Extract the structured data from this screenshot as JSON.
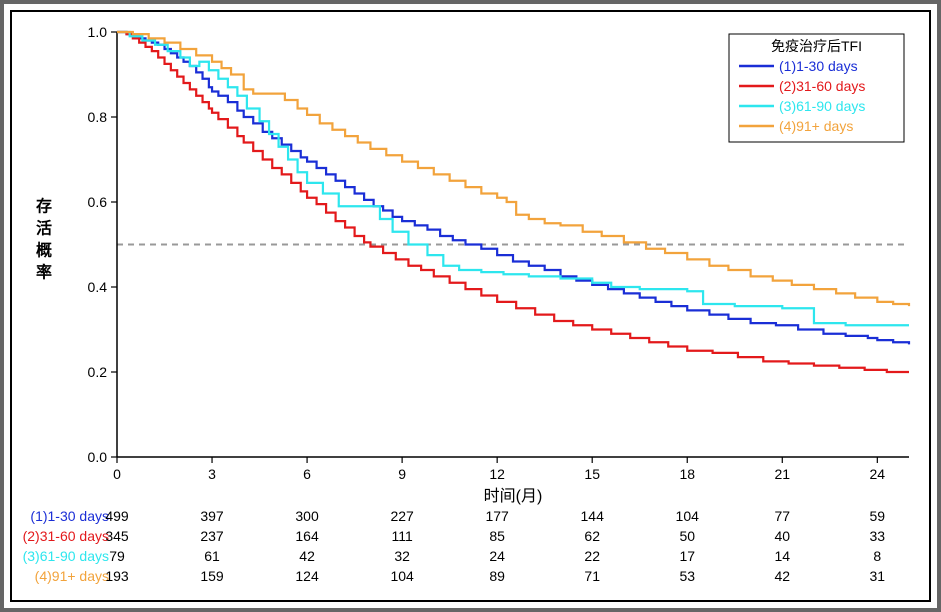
{
  "chart": {
    "type": "kaplan-meier",
    "background_color": "#ffffff",
    "xlabel": "时间(月)",
    "ylabel": "存活概率",
    "label_fontsize": 16,
    "xlim": [
      0,
      25
    ],
    "ylim": [
      0,
      1.0
    ],
    "xticks": [
      0,
      3,
      6,
      9,
      12,
      15,
      18,
      21,
      24
    ],
    "yticks": [
      0.0,
      0.2,
      0.4,
      0.6,
      0.8,
      1.0
    ],
    "yticklabels": [
      "0.0",
      "0.2",
      "0.4",
      "0.6",
      "0.8",
      "1.0"
    ],
    "tick_fontsize": 14,
    "axis_color": "#000000",
    "ref_line": {
      "y": 0.5,
      "color": "#999999",
      "dash": "6,5",
      "width": 2
    },
    "legend": {
      "title": "免疫治疗后TFI",
      "title_color": "#000000",
      "border_color": "#000000",
      "bg_color": "#ffffff",
      "fontsize": 14,
      "position": "top-right"
    },
    "line_width": 2.2,
    "series": [
      {
        "id": "s1",
        "label": "(1)1-30 days",
        "color": "#1a2ed6",
        "points": [
          [
            0,
            1.0
          ],
          [
            0.2,
            1.0
          ],
          [
            0.3,
            0.995
          ],
          [
            0.5,
            0.99
          ],
          [
            0.7,
            0.985
          ],
          [
            0.9,
            0.98
          ],
          [
            1.1,
            0.975
          ],
          [
            1.3,
            0.97
          ],
          [
            1.5,
            0.96
          ],
          [
            1.7,
            0.95
          ],
          [
            1.9,
            0.94
          ],
          [
            2.1,
            0.93
          ],
          [
            2.3,
            0.92
          ],
          [
            2.5,
            0.905
          ],
          [
            2.7,
            0.89
          ],
          [
            2.9,
            0.87
          ],
          [
            3.0,
            0.86
          ],
          [
            3.2,
            0.85
          ],
          [
            3.5,
            0.835
          ],
          [
            3.8,
            0.815
          ],
          [
            4.0,
            0.8
          ],
          [
            4.3,
            0.785
          ],
          [
            4.6,
            0.765
          ],
          [
            4.9,
            0.75
          ],
          [
            5.2,
            0.735
          ],
          [
            5.5,
            0.72
          ],
          [
            5.8,
            0.705
          ],
          [
            6.0,
            0.695
          ],
          [
            6.3,
            0.68
          ],
          [
            6.6,
            0.665
          ],
          [
            6.9,
            0.65
          ],
          [
            7.2,
            0.635
          ],
          [
            7.5,
            0.62
          ],
          [
            7.8,
            0.605
          ],
          [
            8.1,
            0.59
          ],
          [
            8.4,
            0.58
          ],
          [
            8.7,
            0.565
          ],
          [
            9.0,
            0.555
          ],
          [
            9.4,
            0.545
          ],
          [
            9.8,
            0.535
          ],
          [
            10.2,
            0.52
          ],
          [
            10.6,
            0.51
          ],
          [
            11.0,
            0.5
          ],
          [
            11.5,
            0.49
          ],
          [
            12.0,
            0.475
          ],
          [
            12.5,
            0.46
          ],
          [
            13.0,
            0.45
          ],
          [
            13.5,
            0.44
          ],
          [
            14.0,
            0.425
          ],
          [
            14.5,
            0.415
          ],
          [
            15.0,
            0.405
          ],
          [
            15.5,
            0.395
          ],
          [
            16.0,
            0.385
          ],
          [
            16.5,
            0.375
          ],
          [
            17.0,
            0.365
          ],
          [
            17.5,
            0.355
          ],
          [
            18.0,
            0.345
          ],
          [
            18.7,
            0.335
          ],
          [
            19.3,
            0.325
          ],
          [
            20.0,
            0.315
          ],
          [
            20.8,
            0.31
          ],
          [
            21.5,
            0.3
          ],
          [
            22.3,
            0.29
          ],
          [
            23.0,
            0.285
          ],
          [
            23.7,
            0.28
          ],
          [
            24.0,
            0.275
          ],
          [
            24.5,
            0.27
          ],
          [
            25.0,
            0.265
          ]
        ]
      },
      {
        "id": "s2",
        "label": "(2)31-60 days",
        "color": "#e3191b",
        "points": [
          [
            0,
            1.0
          ],
          [
            0.3,
            0.995
          ],
          [
            0.5,
            0.985
          ],
          [
            0.7,
            0.975
          ],
          [
            0.9,
            0.965
          ],
          [
            1.1,
            0.955
          ],
          [
            1.3,
            0.94
          ],
          [
            1.5,
            0.925
          ],
          [
            1.7,
            0.91
          ],
          [
            1.9,
            0.895
          ],
          [
            2.1,
            0.88
          ],
          [
            2.3,
            0.865
          ],
          [
            2.5,
            0.85
          ],
          [
            2.7,
            0.835
          ],
          [
            2.9,
            0.82
          ],
          [
            3.0,
            0.81
          ],
          [
            3.2,
            0.795
          ],
          [
            3.5,
            0.775
          ],
          [
            3.8,
            0.755
          ],
          [
            4.0,
            0.74
          ],
          [
            4.3,
            0.72
          ],
          [
            4.6,
            0.7
          ],
          [
            4.9,
            0.68
          ],
          [
            5.2,
            0.665
          ],
          [
            5.5,
            0.645
          ],
          [
            5.8,
            0.625
          ],
          [
            6.0,
            0.61
          ],
          [
            6.3,
            0.595
          ],
          [
            6.6,
            0.575
          ],
          [
            6.9,
            0.555
          ],
          [
            7.2,
            0.54
          ],
          [
            7.5,
            0.52
          ],
          [
            7.8,
            0.505
          ],
          [
            8.0,
            0.495
          ],
          [
            8.4,
            0.48
          ],
          [
            8.8,
            0.465
          ],
          [
            9.2,
            0.45
          ],
          [
            9.6,
            0.44
          ],
          [
            10.0,
            0.425
          ],
          [
            10.5,
            0.41
          ],
          [
            11.0,
            0.395
          ],
          [
            11.5,
            0.38
          ],
          [
            12.0,
            0.365
          ],
          [
            12.6,
            0.35
          ],
          [
            13.2,
            0.335
          ],
          [
            13.8,
            0.32
          ],
          [
            14.4,
            0.31
          ],
          [
            15.0,
            0.3
          ],
          [
            15.6,
            0.29
          ],
          [
            16.2,
            0.28
          ],
          [
            16.8,
            0.27
          ],
          [
            17.4,
            0.26
          ],
          [
            18.0,
            0.25
          ],
          [
            18.8,
            0.245
          ],
          [
            19.6,
            0.235
          ],
          [
            20.4,
            0.225
          ],
          [
            21.2,
            0.22
          ],
          [
            22.0,
            0.215
          ],
          [
            22.8,
            0.21
          ],
          [
            23.6,
            0.205
          ],
          [
            24.3,
            0.2
          ],
          [
            25.0,
            0.2
          ]
        ]
      },
      {
        "id": "s3",
        "label": "(3)61-90 days",
        "color": "#2de6ee",
        "points": [
          [
            0,
            1.0
          ],
          [
            0.4,
            0.99
          ],
          [
            0.8,
            0.98
          ],
          [
            1.2,
            0.97
          ],
          [
            1.6,
            0.955
          ],
          [
            2.0,
            0.94
          ],
          [
            2.3,
            0.92
          ],
          [
            2.6,
            0.93
          ],
          [
            2.9,
            0.91
          ],
          [
            3.2,
            0.89
          ],
          [
            3.5,
            0.87
          ],
          [
            3.8,
            0.85
          ],
          [
            4.1,
            0.82
          ],
          [
            4.5,
            0.79
          ],
          [
            4.8,
            0.76
          ],
          [
            5.1,
            0.73
          ],
          [
            5.4,
            0.7
          ],
          [
            5.7,
            0.67
          ],
          [
            6.0,
            0.645
          ],
          [
            6.5,
            0.62
          ],
          [
            7.0,
            0.595
          ],
          [
            7.0,
            0.59
          ],
          [
            8.0,
            0.59
          ],
          [
            8.3,
            0.56
          ],
          [
            8.7,
            0.53
          ],
          [
            9.2,
            0.5
          ],
          [
            9.8,
            0.475
          ],
          [
            10.3,
            0.45
          ],
          [
            10.8,
            0.44
          ],
          [
            11.5,
            0.435
          ],
          [
            12.2,
            0.43
          ],
          [
            13.0,
            0.425
          ],
          [
            14.0,
            0.42
          ],
          [
            15.0,
            0.41
          ],
          [
            15.6,
            0.4
          ],
          [
            16.5,
            0.395
          ],
          [
            18.0,
            0.39
          ],
          [
            18.5,
            0.36
          ],
          [
            19.5,
            0.355
          ],
          [
            21.0,
            0.35
          ],
          [
            22.0,
            0.315
          ],
          [
            23.0,
            0.31
          ],
          [
            24.0,
            0.31
          ],
          [
            25.0,
            0.31
          ]
        ]
      },
      {
        "id": "s4",
        "label": "(4)91+ days",
        "color": "#f2a33c",
        "points": [
          [
            0,
            1.0
          ],
          [
            0.5,
            0.995
          ],
          [
            1.0,
            0.985
          ],
          [
            1.5,
            0.975
          ],
          [
            2.0,
            0.96
          ],
          [
            2.5,
            0.945
          ],
          [
            3.0,
            0.93
          ],
          [
            3.3,
            0.915
          ],
          [
            3.6,
            0.9
          ],
          [
            4.0,
            0.885
          ],
          [
            4.0,
            0.865
          ],
          [
            4.3,
            0.855
          ],
          [
            5.0,
            0.855
          ],
          [
            5.3,
            0.84
          ],
          [
            5.7,
            0.82
          ],
          [
            6.0,
            0.805
          ],
          [
            6.4,
            0.785
          ],
          [
            6.8,
            0.77
          ],
          [
            7.2,
            0.755
          ],
          [
            7.6,
            0.74
          ],
          [
            8.0,
            0.725
          ],
          [
            8.5,
            0.71
          ],
          [
            9.0,
            0.695
          ],
          [
            9.5,
            0.68
          ],
          [
            10.0,
            0.665
          ],
          [
            10.5,
            0.65
          ],
          [
            11.0,
            0.635
          ],
          [
            11.5,
            0.62
          ],
          [
            12.0,
            0.61
          ],
          [
            12.3,
            0.6
          ],
          [
            12.6,
            0.57
          ],
          [
            13.0,
            0.56
          ],
          [
            13.5,
            0.55
          ],
          [
            14.0,
            0.545
          ],
          [
            14.7,
            0.53
          ],
          [
            15.3,
            0.52
          ],
          [
            16.0,
            0.505
          ],
          [
            16.7,
            0.49
          ],
          [
            17.3,
            0.48
          ],
          [
            18.0,
            0.465
          ],
          [
            18.7,
            0.45
          ],
          [
            19.3,
            0.44
          ],
          [
            20.0,
            0.425
          ],
          [
            20.7,
            0.415
          ],
          [
            21.3,
            0.405
          ],
          [
            22.0,
            0.395
          ],
          [
            22.7,
            0.385
          ],
          [
            23.3,
            0.375
          ],
          [
            24.0,
            0.365
          ],
          [
            24.5,
            0.36
          ],
          [
            25.0,
            0.355
          ]
        ]
      }
    ],
    "risk_table": {
      "timepoints": [
        0,
        3,
        6,
        9,
        12,
        15,
        18,
        21,
        24
      ],
      "cell_fontsize": 14,
      "label_fontsize": 14,
      "value_color": "#000000",
      "rows": [
        {
          "label": "(1)1-30 days",
          "label_color": "#1a2ed6",
          "values": [
            499,
            397,
            300,
            227,
            177,
            144,
            104,
            77,
            59
          ]
        },
        {
          "label": "(2)31-60 days",
          "label_color": "#e3191b",
          "values": [
            345,
            237,
            164,
            111,
            85,
            62,
            50,
            40,
            33
          ]
        },
        {
          "label": "(3)61-90 days",
          "label_color": "#2de6ee",
          "values": [
            79,
            61,
            42,
            32,
            24,
            22,
            17,
            14,
            8
          ]
        },
        {
          "label": "(4)91+ days",
          "label_color": "#f2a33c",
          "values": [
            193,
            159,
            124,
            104,
            89,
            71,
            53,
            42,
            31
          ]
        }
      ]
    }
  }
}
